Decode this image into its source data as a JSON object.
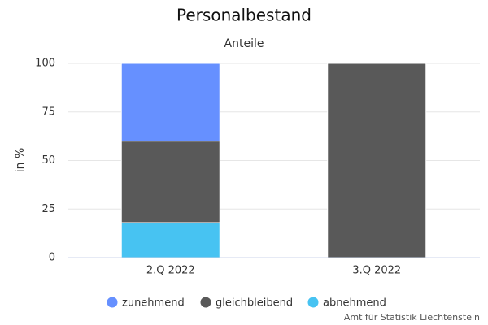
{
  "chart_data": {
    "type": "stacked_bar",
    "title": "Personalbestand",
    "subtitle": "Anteile",
    "y_label": "in %",
    "credit": "Amt für Statistik Liechtenstein",
    "categories": [
      "2.Q 2022",
      "3.Q 2022"
    ],
    "series": [
      {
        "name": "zunehmend",
        "color": "#6690ff",
        "values": [
          40,
          0
        ]
      },
      {
        "name": "gleichbleibend",
        "color": "#595959",
        "values": [
          42,
          100
        ]
      },
      {
        "name": "abnehmend",
        "color": "#47c3f2",
        "values": [
          18,
          0
        ]
      }
    ],
    "ylim": [
      0,
      100
    ],
    "yticks": [
      0,
      25,
      50,
      75,
      100
    ],
    "grid": true
  }
}
